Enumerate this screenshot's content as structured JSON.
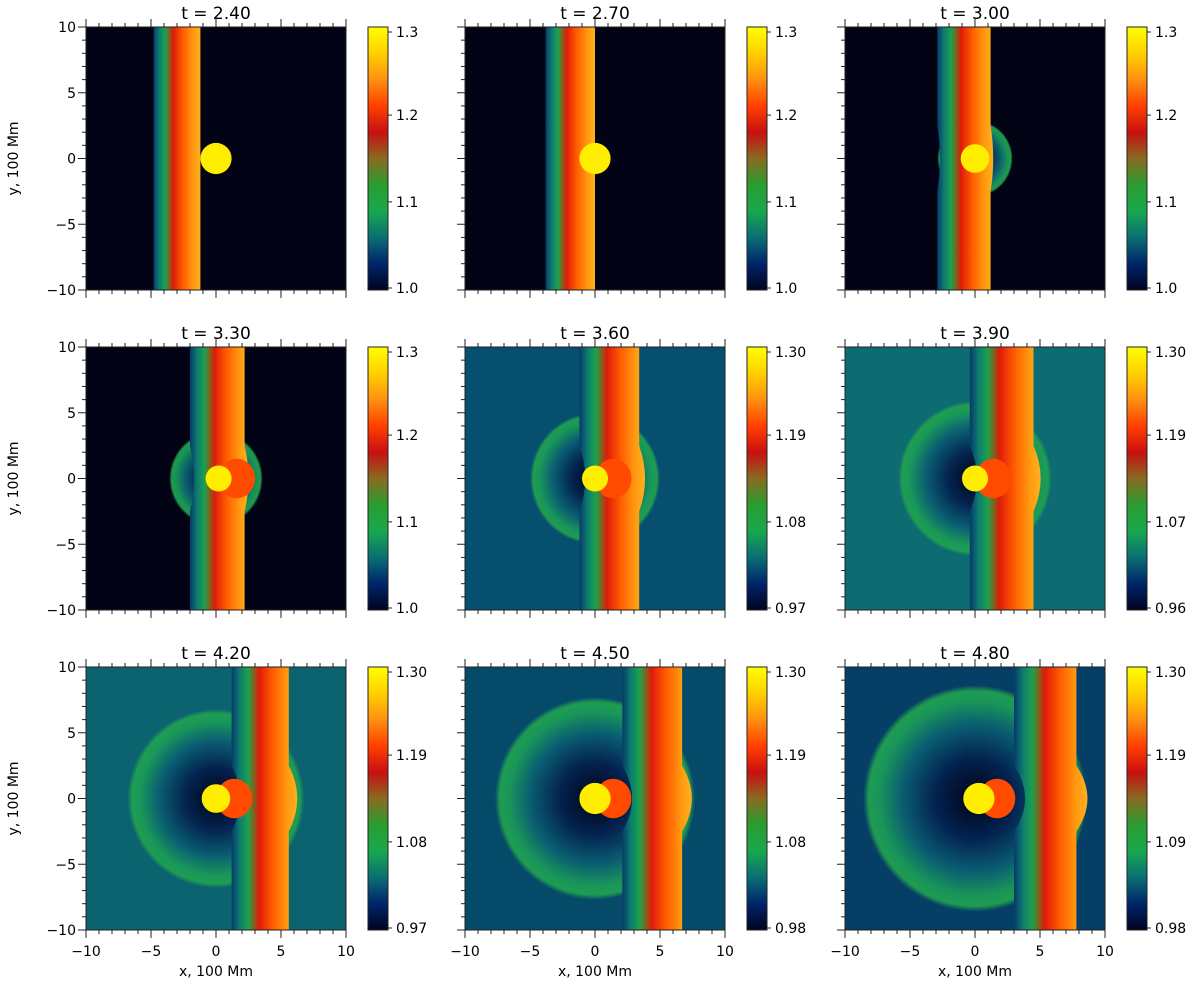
{
  "figure": {
    "xlabel": "x, 100 Mm",
    "ylabel": "y, 100 Mm",
    "xticks": [
      "−10",
      "−5",
      "0",
      "5",
      "10"
    ],
    "yticks": [
      "10",
      "5",
      "0",
      "−5",
      "−10"
    ]
  },
  "colormap": [
    "#000420",
    "#00256b",
    "#0a6f73",
    "#18a84f",
    "#2a9d30",
    "#8a6a20",
    "#c81010",
    "#ff4000",
    "#ff9010",
    "#ffd000",
    "#ffff00"
  ],
  "chart_data": [
    {
      "type": "heatmap",
      "title": "t = 2.40",
      "t": 2.4,
      "xlim": [
        -10,
        10
      ],
      "ylim": [
        -10,
        10
      ],
      "colorbar_ticks": [
        "1.3",
        "1.2",
        "1.1",
        "1.0"
      ],
      "colorbar_range": [
        1.0,
        1.3
      ],
      "background": "#020416",
      "front": {
        "x_back": -4.8,
        "x_peak": -1.2,
        "bulge": 0
      },
      "wave": null,
      "cloud": {
        "x": 0.0,
        "y": 0.0,
        "r": 1.2
      }
    },
    {
      "type": "heatmap",
      "title": "t = 2.70",
      "t": 2.7,
      "xlim": [
        -10,
        10
      ],
      "ylim": [
        -10,
        10
      ],
      "colorbar_ticks": [
        "1.3",
        "1.2",
        "1.1",
        "1.0"
      ],
      "colorbar_range": [
        1.0,
        1.3
      ],
      "background": "#020416",
      "front": {
        "x_back": -3.8,
        "x_peak": 0.0,
        "bulge": 0
      },
      "wave": null,
      "cloud": {
        "x": 0.0,
        "y": 0.0,
        "r": 1.2
      }
    },
    {
      "type": "heatmap",
      "title": "t = 3.00",
      "t": 3.0,
      "xlim": [
        -10,
        10
      ],
      "ylim": [
        -10,
        10
      ],
      "colorbar_ticks": [
        "1.3",
        "1.2",
        "1.1",
        "1.0"
      ],
      "colorbar_range": [
        1.0,
        1.3
      ],
      "background": "#020416",
      "front": {
        "x_back": -2.9,
        "x_peak": 1.2,
        "bulge": 0.4
      },
      "wave": {
        "r": 2.9
      },
      "cloud": {
        "x": 0.0,
        "y": 0.0,
        "r": 1.1
      }
    },
    {
      "type": "heatmap",
      "title": "t = 3.30",
      "t": 3.3,
      "xlim": [
        -10,
        10
      ],
      "ylim": [
        -10,
        10
      ],
      "colorbar_ticks": [
        "1.3",
        "1.2",
        "1.1",
        "1.0"
      ],
      "colorbar_range": [
        1.0,
        1.3
      ],
      "background": "#020416",
      "front": {
        "x_back": -2.0,
        "x_peak": 2.2,
        "bulge": 0.6
      },
      "wave": {
        "r": 3.6
      },
      "cloud": {
        "x": 0.2,
        "y": 0.0,
        "r": 1.0
      }
    },
    {
      "type": "heatmap",
      "title": "t = 3.60",
      "t": 3.6,
      "xlim": [
        -10,
        10
      ],
      "ylim": [
        -10,
        10
      ],
      "colorbar_ticks": [
        "1.30",
        "1.19",
        "1.08",
        "0.97"
      ],
      "colorbar_range": [
        0.97,
        1.3
      ],
      "background": "#074f6e",
      "front": {
        "x_back": -1.2,
        "x_peak": 3.4,
        "bulge": 0.9
      },
      "wave": {
        "r": 5.0
      },
      "cloud": {
        "x": 0.0,
        "y": 0.0,
        "r": 1.0
      }
    },
    {
      "type": "heatmap",
      "title": "t = 3.90",
      "t": 3.9,
      "xlim": [
        -10,
        10
      ],
      "ylim": [
        -10,
        10
      ],
      "colorbar_ticks": [
        "1.30",
        "1.19",
        "1.07",
        "0.96"
      ],
      "colorbar_range": [
        0.96,
        1.3
      ],
      "background": "#0d6b72",
      "front": {
        "x_back": -0.4,
        "x_peak": 4.5,
        "bulge": 1.1
      },
      "wave": {
        "r": 5.9
      },
      "cloud": {
        "x": 0.0,
        "y": 0.0,
        "r": 1.0
      }
    },
    {
      "type": "heatmap",
      "title": "t = 4.20",
      "t": 4.2,
      "xlim": [
        -10,
        10
      ],
      "ylim": [
        -10,
        10
      ],
      "colorbar_ticks": [
        "1.30",
        "1.19",
        "1.08",
        "0.97"
      ],
      "colorbar_range": [
        0.97,
        1.3
      ],
      "background": "#0b6370",
      "front": {
        "x_back": 1.2,
        "x_peak": 5.6,
        "bulge": 1.3
      },
      "wave": {
        "r": 6.8
      },
      "cloud": {
        "x": 0.0,
        "y": 0.0,
        "r": 1.1
      }
    },
    {
      "type": "heatmap",
      "title": "t = 4.50",
      "t": 4.5,
      "xlim": [
        -10,
        10
      ],
      "ylim": [
        -10,
        10
      ],
      "colorbar_ticks": [
        "1.30",
        "1.19",
        "1.08",
        "0.98"
      ],
      "colorbar_range": [
        0.98,
        1.3
      ],
      "background": "#064a6a",
      "front": {
        "x_back": 2.1,
        "x_peak": 6.7,
        "bulge": 1.5
      },
      "wave": {
        "r": 7.7
      },
      "cloud": {
        "x": 0.0,
        "y": 0.0,
        "r": 1.2
      }
    },
    {
      "type": "heatmap",
      "title": "t = 4.80",
      "t": 4.8,
      "xlim": [
        -10,
        10
      ],
      "ylim": [
        -10,
        10
      ],
      "colorbar_ticks": [
        "1.30",
        "1.19",
        "1.09",
        "0.98"
      ],
      "colorbar_range": [
        0.98,
        1.3
      ],
      "background": "#053f66",
      "front": {
        "x_back": 3.0,
        "x_peak": 7.8,
        "bulge": 1.7
      },
      "wave": {
        "r": 8.6
      },
      "cloud": {
        "x": 0.3,
        "y": 0.0,
        "r": 1.2
      }
    }
  ]
}
